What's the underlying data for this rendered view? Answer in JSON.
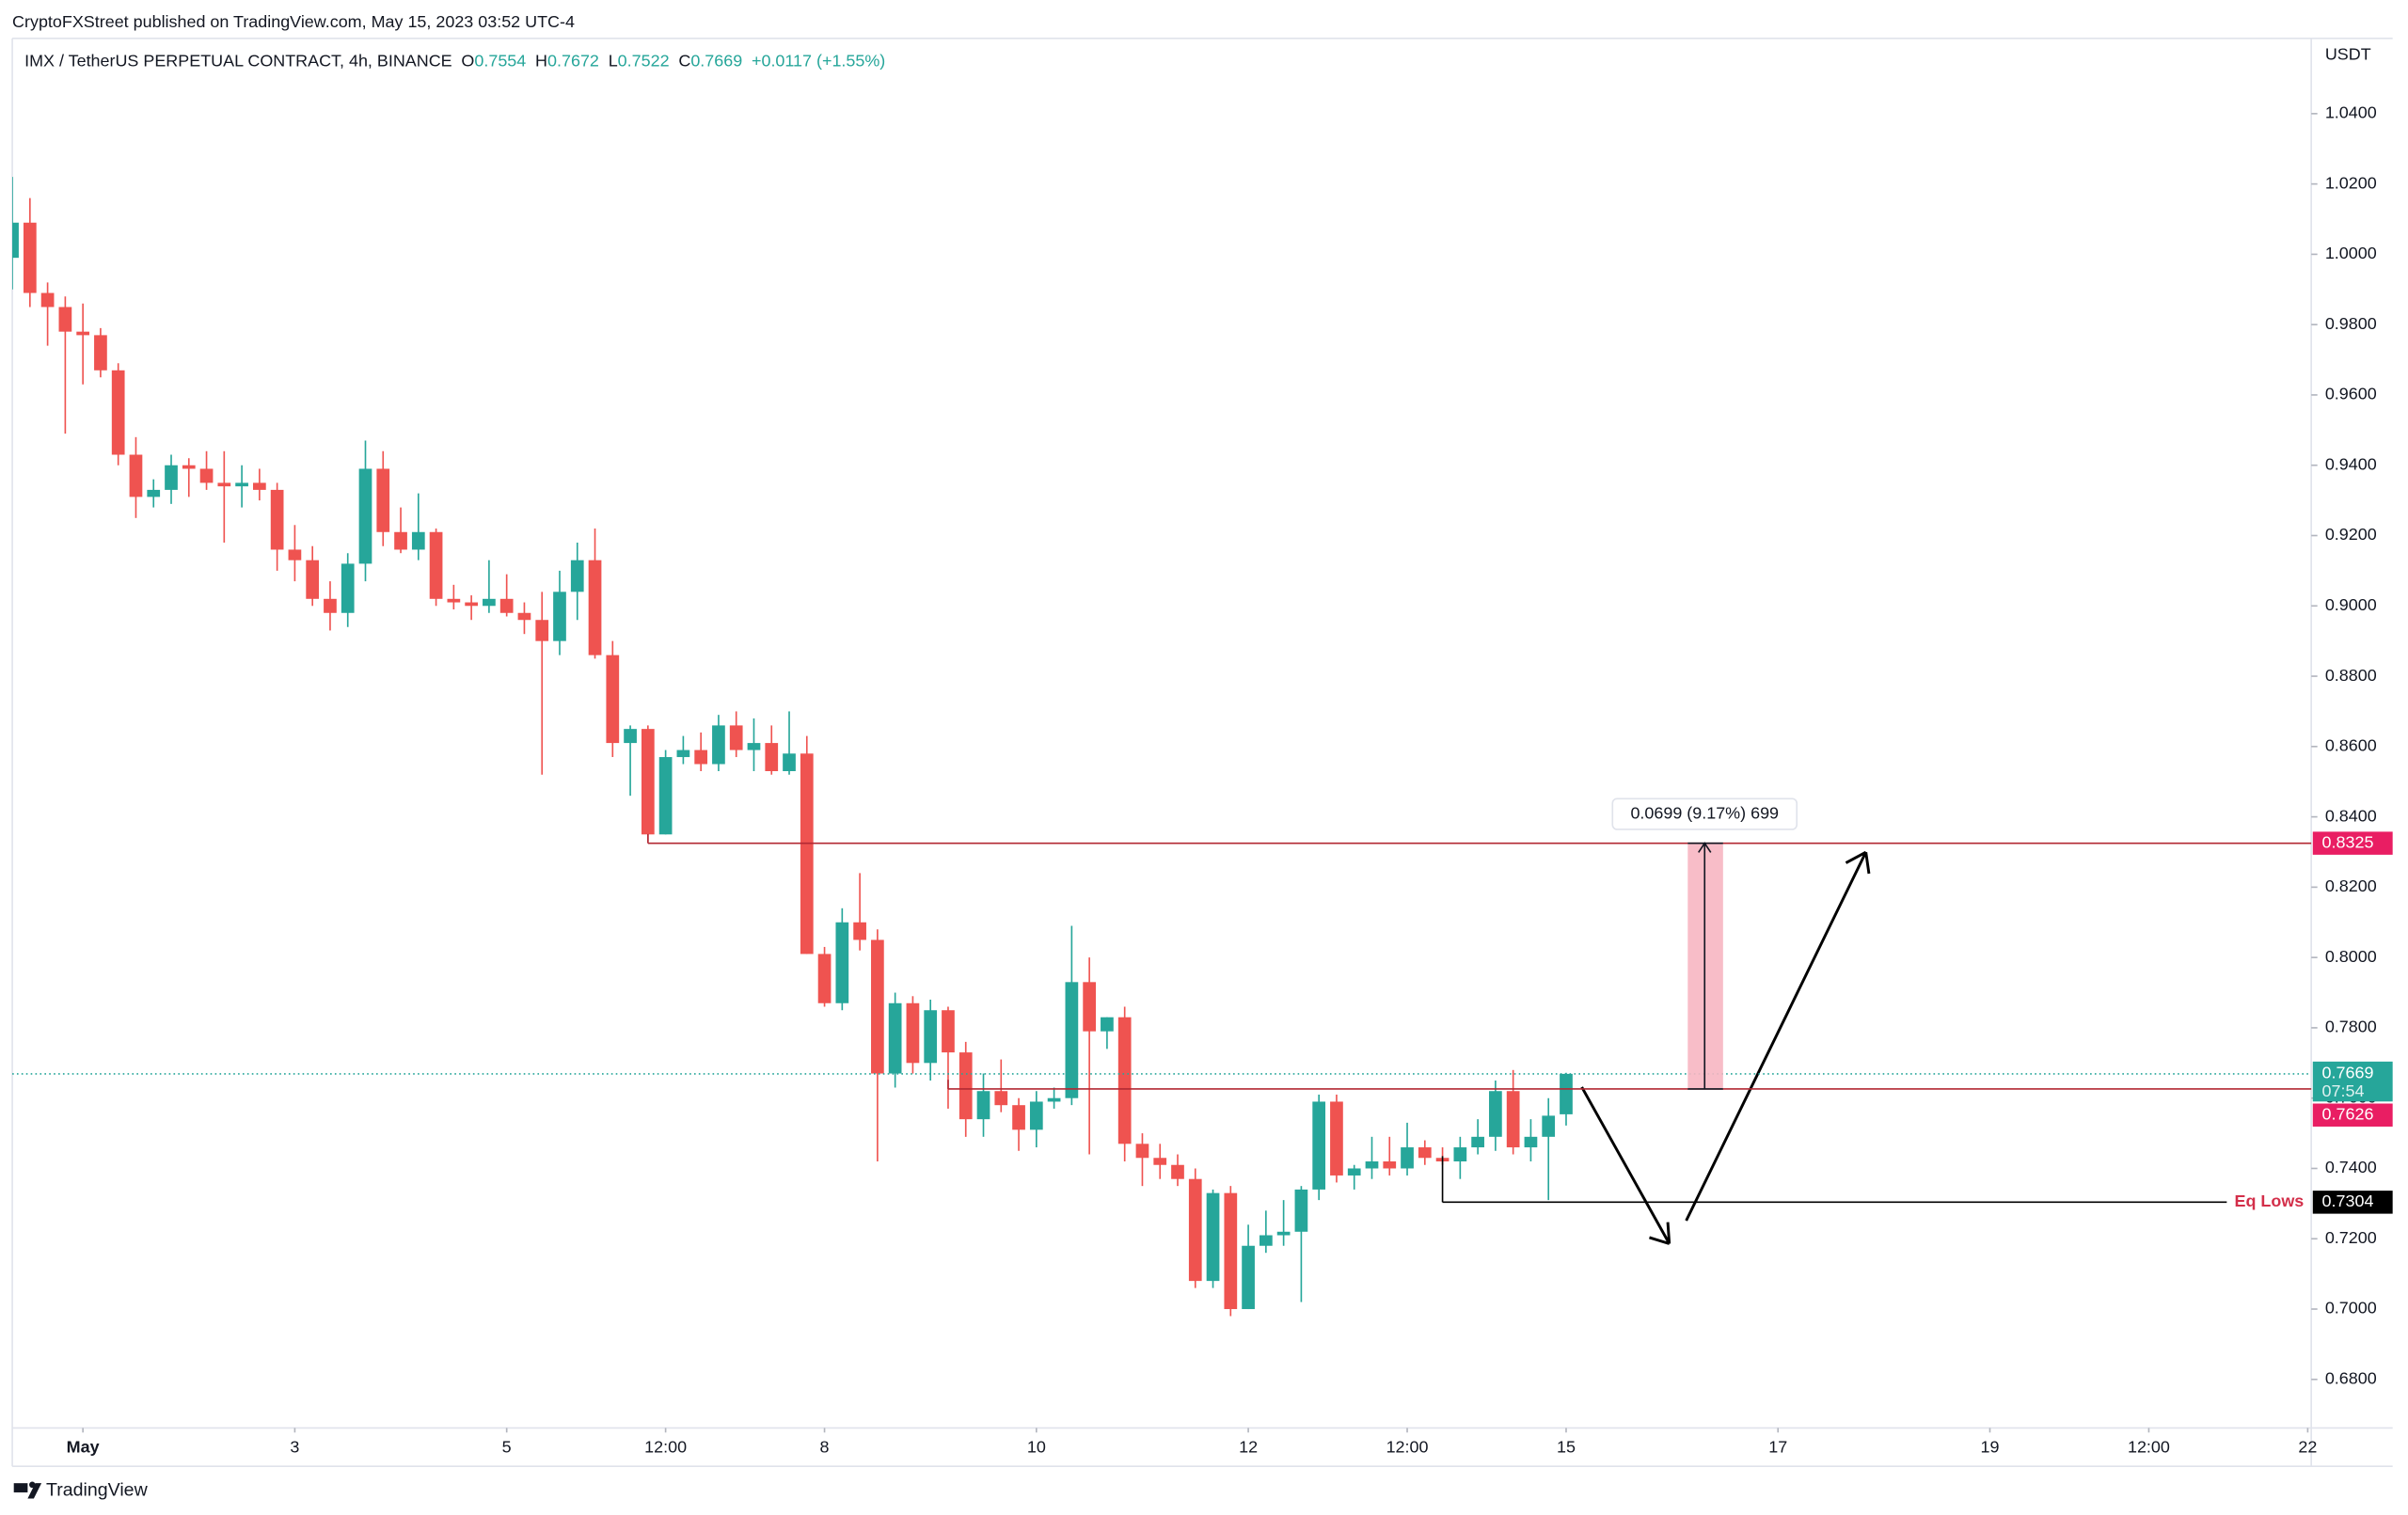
{
  "chart_data": {
    "type": "candlestick",
    "publisher": "CryptoFXStreet published on TradingView.com, May 15, 2023 03:52 UTC-4",
    "title": "IMX / TetherUS PERPETUAL CONTRACT, 4h, BINANCE",
    "ohlc_labels": [
      "O",
      "H",
      "L",
      "C"
    ],
    "change": "+0.0117 (+1.55%)",
    "currency": "USDT",
    "brand": "TradingView",
    "countdown": "07:54",
    "up_color": "#26a69a",
    "down_color": "#ef5350",
    "x": [
      0,
      1,
      2,
      3,
      4,
      5,
      6,
      7,
      8,
      9,
      10,
      11,
      12,
      13,
      14,
      15,
      16,
      17,
      18,
      19,
      20,
      21,
      22,
      23,
      24,
      25,
      26,
      27,
      28,
      29,
      30,
      31,
      32,
      33,
      34,
      35,
      36,
      37,
      38,
      39,
      40,
      41,
      42,
      43,
      44,
      45,
      46,
      47,
      48,
      49,
      50,
      51,
      52,
      53,
      54,
      55,
      56,
      57,
      58,
      59,
      60,
      61,
      62,
      63,
      64,
      65,
      66,
      67,
      68,
      69,
      70,
      71,
      72,
      73,
      74,
      75,
      76,
      77,
      78,
      79,
      80,
      81,
      82,
      83,
      84,
      85,
      86,
      87,
      88
    ],
    "open": [
      0.999,
      1.009,
      0.989,
      0.985,
      0.978,
      0.977,
      0.967,
      0.943,
      0.931,
      0.933,
      0.94,
      0.939,
      0.935,
      0.934,
      0.935,
      0.933,
      0.916,
      0.913,
      0.902,
      0.898,
      0.912,
      0.939,
      0.921,
      0.916,
      0.921,
      0.902,
      0.901,
      0.9,
      0.902,
      0.898,
      0.896,
      0.89,
      0.904,
      0.913,
      0.886,
      0.861,
      0.865,
      0.835,
      0.857,
      0.859,
      0.855,
      0.866,
      0.859,
      0.861,
      0.853,
      0.858,
      0.801,
      0.787,
      0.81,
      0.805,
      0.767,
      0.787,
      0.77,
      0.785,
      0.773,
      0.754,
      0.762,
      0.758,
      0.751,
      0.759,
      0.76,
      0.793,
      0.779,
      0.783,
      0.747,
      0.743,
      0.741,
      0.737,
      0.708,
      0.733,
      0.7,
      0.718,
      0.721,
      0.722,
      0.734,
      0.759,
      0.738,
      0.74,
      0.742,
      0.74,
      0.746,
      0.743,
      0.742,
      0.746,
      0.749,
      0.762,
      0.746,
      0.749,
      0.7554
    ],
    "high": [
      1.022,
      1.016,
      0.992,
      0.988,
      0.986,
      0.979,
      0.969,
      0.948,
      0.936,
      0.943,
      0.942,
      0.944,
      0.944,
      0.94,
      0.939,
      0.935,
      0.923,
      0.917,
      0.907,
      0.915,
      0.947,
      0.944,
      0.928,
      0.932,
      0.922,
      0.906,
      0.903,
      0.913,
      0.909,
      0.901,
      0.904,
      0.91,
      0.918,
      0.922,
      0.89,
      0.866,
      0.866,
      0.859,
      0.863,
      0.864,
      0.869,
      0.87,
      0.868,
      0.866,
      0.87,
      0.863,
      0.803,
      0.814,
      0.824,
      0.808,
      0.79,
      0.789,
      0.788,
      0.786,
      0.776,
      0.767,
      0.771,
      0.76,
      0.762,
      0.763,
      0.809,
      0.8,
      0.783,
      0.786,
      0.75,
      0.747,
      0.744,
      0.74,
      0.734,
      0.735,
      0.724,
      0.728,
      0.731,
      0.735,
      0.761,
      0.761,
      0.741,
      0.749,
      0.749,
      0.753,
      0.748,
      0.746,
      0.749,
      0.754,
      0.765,
      0.768,
      0.754,
      0.76,
      0.7672
    ],
    "low": [
      0.99,
      0.985,
      0.974,
      0.949,
      0.963,
      0.965,
      0.94,
      0.925,
      0.928,
      0.929,
      0.931,
      0.933,
      0.918,
      0.928,
      0.93,
      0.91,
      0.907,
      0.9,
      0.893,
      0.894,
      0.907,
      0.917,
      0.915,
      0.913,
      0.9,
      0.899,
      0.896,
      0.898,
      0.897,
      0.892,
      0.852,
      0.886,
      0.896,
      0.885,
      0.857,
      0.846,
      0.833,
      0.835,
      0.855,
      0.853,
      0.853,
      0.857,
      0.853,
      0.852,
      0.852,
      0.801,
      0.786,
      0.785,
      0.802,
      0.742,
      0.763,
      0.767,
      0.765,
      0.757,
      0.749,
      0.749,
      0.756,
      0.745,
      0.746,
      0.757,
      0.758,
      0.744,
      0.774,
      0.742,
      0.735,
      0.737,
      0.735,
      0.706,
      0.706,
      0.698,
      0.7,
      0.716,
      0.718,
      0.702,
      0.731,
      0.736,
      0.734,
      0.737,
      0.738,
      0.738,
      0.741,
      0.741,
      0.737,
      0.744,
      0.745,
      0.744,
      0.742,
      0.731,
      0.7522
    ],
    "close": [
      1.009,
      0.989,
      0.985,
      0.978,
      0.977,
      0.967,
      0.943,
      0.931,
      0.933,
      0.94,
      0.939,
      0.935,
      0.934,
      0.935,
      0.933,
      0.916,
      0.913,
      0.902,
      0.898,
      0.912,
      0.939,
      0.921,
      0.916,
      0.921,
      0.902,
      0.901,
      0.9,
      0.902,
      0.898,
      0.896,
      0.89,
      0.904,
      0.913,
      0.886,
      0.861,
      0.865,
      0.835,
      0.857,
      0.859,
      0.855,
      0.866,
      0.859,
      0.861,
      0.853,
      0.858,
      0.801,
      0.787,
      0.81,
      0.805,
      0.767,
      0.787,
      0.77,
      0.785,
      0.773,
      0.754,
      0.762,
      0.758,
      0.751,
      0.759,
      0.76,
      0.793,
      0.779,
      0.783,
      0.747,
      0.743,
      0.741,
      0.737,
      0.708,
      0.733,
      0.7,
      0.718,
      0.721,
      0.722,
      0.734,
      0.759,
      0.738,
      0.74,
      0.742,
      0.74,
      0.746,
      0.743,
      0.742,
      0.746,
      0.749,
      0.762,
      0.746,
      0.749,
      0.755,
      0.7669
    ],
    "xlim": [
      0,
      130.2
    ],
    "xticks": [
      {
        "value": 4,
        "label": "May"
      },
      {
        "value": 16,
        "label": "3"
      },
      {
        "value": 28,
        "label": "5"
      },
      {
        "value": 37,
        "label": "12:00"
      },
      {
        "value": 46,
        "label": "8"
      },
      {
        "value": 58,
        "label": "10"
      },
      {
        "value": 70,
        "label": "12"
      },
      {
        "value": 79,
        "label": "12:00"
      },
      {
        "value": 88,
        "label": "15"
      },
      {
        "value": 100,
        "label": "17"
      },
      {
        "value": 112,
        "label": "19"
      },
      {
        "value": 121,
        "label": "12:00"
      },
      {
        "value": 130,
        "label": "22"
      }
    ],
    "ylim": [
      0.6662,
      1.0614
    ],
    "yticks": [
      {
        "value": 0.68,
        "label": "0.6800"
      },
      {
        "value": 0.7,
        "label": "0.7000"
      },
      {
        "value": 0.72,
        "label": "0.7200"
      },
      {
        "value": 0.74,
        "label": "0.7400"
      },
      {
        "value": 0.76,
        "label": "0.7600"
      },
      {
        "value": 0.78,
        "label": "0.7800"
      },
      {
        "value": 0.8,
        "label": "0.8000"
      },
      {
        "value": 0.82,
        "label": "0.8200"
      },
      {
        "value": 0.84,
        "label": "0.8400"
      },
      {
        "value": 0.86,
        "label": "0.8600"
      },
      {
        "value": 0.88,
        "label": "0.8800"
      },
      {
        "value": 0.9,
        "label": "0.9000"
      },
      {
        "value": 0.92,
        "label": "0.9200"
      },
      {
        "value": 0.94,
        "label": "0.9400"
      },
      {
        "value": 0.96,
        "label": "0.9600"
      },
      {
        "value": 0.98,
        "label": "0.9800"
      },
      {
        "value": 1.0,
        "label": "1.0000"
      },
      {
        "value": 1.02,
        "label": "1.0200"
      },
      {
        "value": 1.04,
        "label": "1.0400"
      }
    ],
    "levels": [
      {
        "value": 0.8325,
        "color": "#b22833",
        "tag_color": "#e91e63"
      },
      {
        "value": 0.7626,
        "color": "#b22833",
        "tag_color": "#e91e63"
      },
      {
        "value": 0.7304,
        "color": "#000000",
        "tag_color": "#000000",
        "label": "Eq Lows"
      }
    ],
    "measure": {
      "label": "0.0699 (9.17%) 699",
      "color": "#f7b6c2"
    }
  }
}
